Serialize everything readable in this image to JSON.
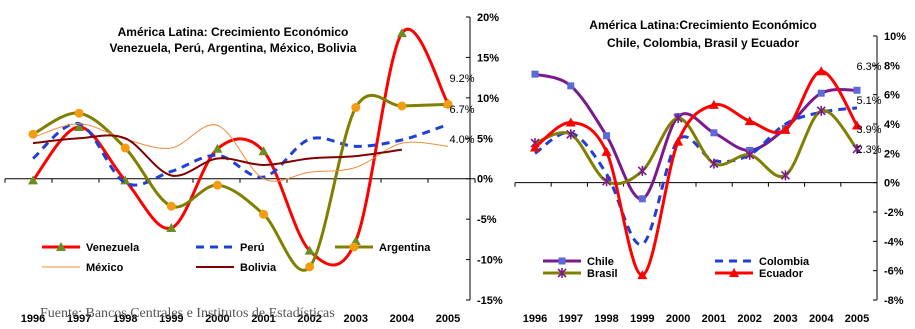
{
  "source": "Fuente: Bancos Centrales e Institutos de Estadísticas",
  "chart_data": [
    {
      "type": "line",
      "title": [
        "América Latina: Crecimiento Económico",
        "Venezuela, Perú, Argentina, México, Bolivia"
      ],
      "categories": [
        "1996",
        "1997",
        "1998",
        "1999",
        "2000",
        "2001",
        "2002",
        "2003",
        "2004",
        "2005"
      ],
      "ylim": [
        -15,
        20
      ],
      "yticks": [
        "20%",
        "15%",
        "10%",
        "5%",
        "0%",
        "-5%",
        "-10%",
        "-15%"
      ],
      "series": [
        {
          "name": "Venezuela",
          "color": "#ff0000",
          "width": 3,
          "dash": "",
          "marker": "triangle",
          "marker_color": "#6b8e23",
          "values": [
            -0.2,
            6.4,
            -0.2,
            -6.1,
            3.7,
            3.4,
            -8.9,
            -7.7,
            18.0,
            9.3
          ]
        },
        {
          "name": "Perú",
          "color": "#1f3fd6",
          "width": 3,
          "dash": "8,6",
          "marker": "none",
          "values": [
            2.5,
            6.8,
            -0.5,
            0.9,
            2.9,
            0.2,
            4.9,
            4.0,
            4.8,
            6.7
          ]
        },
        {
          "name": "Argentina",
          "color": "#808000",
          "width": 3,
          "dash": "",
          "marker": "circle",
          "marker_color": "#f39c12",
          "values": [
            5.5,
            8.1,
            3.8,
            -3.4,
            -0.8,
            -4.4,
            -10.9,
            8.8,
            9.0,
            9.2
          ]
        },
        {
          "name": "México",
          "color": "#f08c3a",
          "width": 1,
          "dash": "",
          "marker": "none",
          "values": [
            5.1,
            6.8,
            4.9,
            3.8,
            6.6,
            0.0,
            0.8,
            1.4,
            4.4,
            4.0
          ]
        },
        {
          "name": "Bolivia",
          "color": "#800000",
          "width": 2,
          "dash": "",
          "marker": "none",
          "values": [
            4.4,
            5.0,
            5.0,
            0.4,
            2.5,
            1.7,
            2.5,
            2.8,
            3.6,
            null
          ]
        }
      ],
      "annotations": [
        "9.2%",
        "6.7%",
        "4.0%"
      ]
    },
    {
      "type": "line",
      "title": [
        "América Latina:Crecimiento Económico",
        "Chile, Colombia, Brasil y Ecuador"
      ],
      "categories": [
        "1996",
        "1997",
        "1998",
        "1999",
        "2000",
        "2001",
        "2002",
        "2003",
        "2004",
        "2005"
      ],
      "ylim": [
        -8,
        10
      ],
      "yticks": [
        "10%",
        "8%",
        "6%",
        "4%",
        "2%",
        "0%",
        "-2%",
        "-4%",
        "-6%",
        "-8%"
      ],
      "series": [
        {
          "name": "Chile",
          "color": "#7a1a8c",
          "width": 3,
          "dash": "",
          "marker": "square",
          "marker_color": "#5a6ad6",
          "values": [
            7.4,
            6.6,
            3.2,
            -1.1,
            4.5,
            3.4,
            2.2,
            3.7,
            6.1,
            6.3
          ]
        },
        {
          "name": "Colombia",
          "color": "#1f3fd6",
          "width": 3,
          "dash": "8,6",
          "marker": "none",
          "values": [
            2.0,
            3.4,
            0.6,
            -4.2,
            2.9,
            1.5,
            1.9,
            4.0,
            4.8,
            5.1
          ]
        },
        {
          "name": "Brasil",
          "color": "#808000",
          "width": 3,
          "dash": "",
          "marker": "star",
          "marker_color": "#7a1a8c",
          "values": [
            2.7,
            3.3,
            0.1,
            0.8,
            4.4,
            1.3,
            1.9,
            0.5,
            4.9,
            2.3
          ]
        },
        {
          "name": "Ecuador",
          "color": "#ff0000",
          "width": 3,
          "dash": "",
          "marker": "triangle",
          "marker_color": "#ff0000",
          "values": [
            2.4,
            4.1,
            2.1,
            -6.3,
            2.8,
            5.3,
            4.2,
            3.6,
            7.6,
            3.9
          ]
        }
      ],
      "annotations": [
        "6.3%",
        "5.1%",
        "3.9%",
        "2.3%"
      ]
    }
  ]
}
